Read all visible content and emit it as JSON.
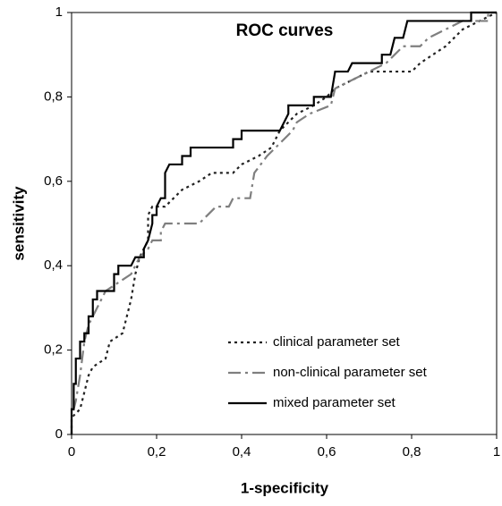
{
  "chart_data": {
    "type": "line",
    "title": "ROC curves",
    "xlabel": "1-specificity",
    "ylabel": "sensitivity",
    "xlim": [
      0,
      1
    ],
    "ylim": [
      0,
      1
    ],
    "xticks": [
      0,
      {
        "value": 0.2,
        "label": "0,2"
      },
      {
        "value": 0.4,
        "label": "0,4"
      },
      {
        "value": 0.6,
        "label": "0,6"
      },
      {
        "value": 0.8,
        "label": "0,8"
      },
      1
    ],
    "yticks": [
      0,
      {
        "value": 0.2,
        "label": "0,2"
      },
      {
        "value": 0.4,
        "label": "0,4"
      },
      {
        "value": 0.6,
        "label": "0,6"
      },
      {
        "value": 0.8,
        "label": "0,8"
      },
      1
    ],
    "legend": "lower right",
    "series": [
      {
        "name": "clinical parameter set",
        "color": "#222222",
        "linestyle": "dotted",
        "x": [
          0,
          0,
          0.02,
          0.03,
          0.04,
          0.05,
          0.08,
          0.09,
          0.12,
          0.13,
          0.14,
          0.15,
          0.16,
          0.18,
          0.18,
          0.19,
          0.22,
          0.24,
          0.26,
          0.3,
          0.33,
          0.38,
          0.4,
          0.44,
          0.47,
          0.49,
          0.51,
          0.53,
          0.57,
          0.6,
          0.62,
          0.66,
          0.7,
          0.8,
          0.82,
          0.85,
          0.88,
          0.9,
          0.92,
          0.96,
          1
        ],
        "values": [
          0,
          0.04,
          0.06,
          0.1,
          0.14,
          0.16,
          0.18,
          0.22,
          0.24,
          0.28,
          0.32,
          0.38,
          0.42,
          0.46,
          0.52,
          0.54,
          0.54,
          0.56,
          0.58,
          0.6,
          0.62,
          0.62,
          0.64,
          0.66,
          0.68,
          0.72,
          0.74,
          0.76,
          0.78,
          0.8,
          0.82,
          0.84,
          0.86,
          0.86,
          0.88,
          0.9,
          0.92,
          0.94,
          0.96,
          0.98,
          1
        ]
      },
      {
        "name": "non-clinical parameter set",
        "color": "#7f7f7f",
        "linestyle": "dashdot",
        "x": [
          0,
          0,
          0.01,
          0.02,
          0.03,
          0.04,
          0.05,
          0.06,
          0.07,
          0.08,
          0.11,
          0.14,
          0.16,
          0.18,
          0.19,
          0.21,
          0.21,
          0.22,
          0.3,
          0.32,
          0.34,
          0.37,
          0.38,
          0.42,
          0.43,
          0.46,
          0.48,
          0.5,
          0.52,
          0.53,
          0.56,
          0.61,
          0.62,
          0.66,
          0.7,
          0.74,
          0.76,
          0.78,
          0.82,
          0.84,
          0.88,
          0.92,
          0.98,
          0.98,
          1
        ],
        "values": [
          0,
          0.04,
          0.08,
          0.14,
          0.22,
          0.26,
          0.28,
          0.3,
          0.32,
          0.34,
          0.36,
          0.38,
          0.42,
          0.44,
          0.46,
          0.46,
          0.48,
          0.5,
          0.5,
          0.52,
          0.54,
          0.54,
          0.56,
          0.56,
          0.62,
          0.66,
          0.68,
          0.7,
          0.72,
          0.74,
          0.76,
          0.78,
          0.82,
          0.84,
          0.86,
          0.88,
          0.9,
          0.92,
          0.92,
          0.94,
          0.96,
          0.98,
          0.98,
          1,
          1
        ]
      },
      {
        "name": "mixed parameter set",
        "color": "#000000",
        "linestyle": "solid",
        "x": [
          0,
          0,
          0.005,
          0.005,
          0.01,
          0.01,
          0.02,
          0.02,
          0.03,
          0.03,
          0.04,
          0.04,
          0.05,
          0.05,
          0.06,
          0.06,
          0.1,
          0.1,
          0.11,
          0.11,
          0.14,
          0.15,
          0.17,
          0.17,
          0.18,
          0.19,
          0.19,
          0.2,
          0.2,
          0.21,
          0.22,
          0.22,
          0.23,
          0.26,
          0.26,
          0.28,
          0.28,
          0.38,
          0.38,
          0.4,
          0.4,
          0.49,
          0.5,
          0.51,
          0.51,
          0.57,
          0.57,
          0.61,
          0.62,
          0.65,
          0.66,
          0.73,
          0.73,
          0.75,
          0.76,
          0.78,
          0.79,
          0.94,
          0.94,
          1
        ],
        "values": [
          0,
          0.06,
          0.06,
          0.12,
          0.12,
          0.18,
          0.18,
          0.22,
          0.22,
          0.24,
          0.24,
          0.28,
          0.28,
          0.32,
          0.32,
          0.34,
          0.34,
          0.38,
          0.38,
          0.4,
          0.4,
          0.42,
          0.42,
          0.44,
          0.46,
          0.5,
          0.52,
          0.52,
          0.54,
          0.56,
          0.56,
          0.62,
          0.64,
          0.64,
          0.66,
          0.66,
          0.68,
          0.68,
          0.7,
          0.7,
          0.72,
          0.72,
          0.74,
          0.76,
          0.78,
          0.78,
          0.8,
          0.8,
          0.86,
          0.86,
          0.88,
          0.88,
          0.9,
          0.9,
          0.94,
          0.94,
          0.98,
          0.98,
          1,
          1
        ]
      }
    ]
  }
}
